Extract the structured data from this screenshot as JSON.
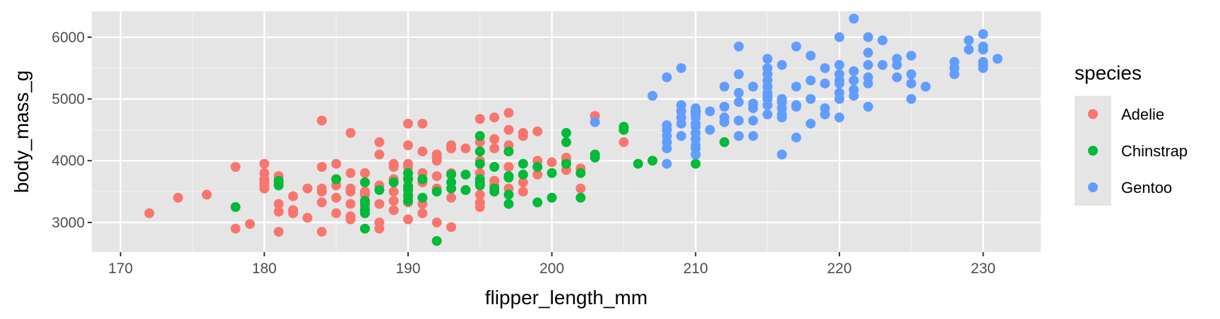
{
  "chart_data": {
    "type": "scatter",
    "xlabel": "flipper_length_mm",
    "ylabel": "body_mass_g",
    "xlim": [
      168,
      234
    ],
    "ylim": [
      2520,
      6420
    ],
    "x_ticks": [
      170,
      180,
      190,
      200,
      210,
      220,
      230
    ],
    "x_minor_ticks": [
      175,
      185,
      195,
      205,
      215,
      225
    ],
    "y_ticks": [
      3000,
      4000,
      5000,
      6000
    ],
    "y_minor_ticks": [
      3500,
      4500,
      5500
    ],
    "grid": true,
    "panel_background": "#e5e5e5",
    "legend": {
      "title": "species",
      "placement": "right"
    },
    "series": [
      {
        "name": "Adelie",
        "color": "#f8766d",
        "points": [
          [
            172,
            3150
          ],
          [
            174,
            3400
          ],
          [
            176,
            3450
          ],
          [
            178,
            2900
          ],
          [
            178,
            3900
          ],
          [
            179,
            2975
          ],
          [
            180,
            3550
          ],
          [
            180,
            3600
          ],
          [
            180,
            3650
          ],
          [
            180,
            3700
          ],
          [
            180,
            3800
          ],
          [
            180,
            3950
          ],
          [
            181,
            2850
          ],
          [
            181,
            3175
          ],
          [
            181,
            3300
          ],
          [
            181,
            3625
          ],
          [
            181,
            3750
          ],
          [
            182,
            3150
          ],
          [
            182,
            3200
          ],
          [
            182,
            3425
          ],
          [
            183,
            3075
          ],
          [
            183,
            3550
          ],
          [
            184,
            2850
          ],
          [
            184,
            3325
          ],
          [
            184,
            3500
          ],
          [
            184,
            3550
          ],
          [
            184,
            3900
          ],
          [
            184,
            4650
          ],
          [
            185,
            3150
          ],
          [
            185,
            3400
          ],
          [
            185,
            3600
          ],
          [
            185,
            3700
          ],
          [
            185,
            3950
          ],
          [
            186,
            3050
          ],
          [
            186,
            3100
          ],
          [
            186,
            3300
          ],
          [
            186,
            3500
          ],
          [
            186,
            3550
          ],
          [
            186,
            3800
          ],
          [
            186,
            4450
          ],
          [
            187,
            3150
          ],
          [
            187,
            3250
          ],
          [
            187,
            3450
          ],
          [
            187,
            3500
          ],
          [
            187,
            3650
          ],
          [
            187,
            3800
          ],
          [
            188,
            2900
          ],
          [
            188,
            3000
          ],
          [
            188,
            3300
          ],
          [
            188,
            3600
          ],
          [
            188,
            4100
          ],
          [
            188,
            4300
          ],
          [
            189,
            3200
          ],
          [
            189,
            3350
          ],
          [
            189,
            3500
          ],
          [
            189,
            3700
          ],
          [
            189,
            3900
          ],
          [
            189,
            3950
          ],
          [
            190,
            3050
          ],
          [
            190,
            3325
          ],
          [
            190,
            3450
          ],
          [
            190,
            3600
          ],
          [
            190,
            3725
          ],
          [
            190,
            3800
          ],
          [
            190,
            3900
          ],
          [
            190,
            3950
          ],
          [
            190,
            4250
          ],
          [
            190,
            4600
          ],
          [
            191,
            3150
          ],
          [
            191,
            3300
          ],
          [
            191,
            3650
          ],
          [
            191,
            3700
          ],
          [
            191,
            3800
          ],
          [
            191,
            4150
          ],
          [
            191,
            4600
          ],
          [
            192,
            3000
          ],
          [
            192,
            3550
          ],
          [
            192,
            3750
          ],
          [
            192,
            4000
          ],
          [
            192,
            4050
          ],
          [
            192,
            4100
          ],
          [
            193,
            2925
          ],
          [
            193,
            3400
          ],
          [
            193,
            3650
          ],
          [
            193,
            3800
          ],
          [
            193,
            4200
          ],
          [
            193,
            4250
          ],
          [
            194,
            3525
          ],
          [
            194,
            4200
          ],
          [
            195,
            3250
          ],
          [
            195,
            3325
          ],
          [
            195,
            3450
          ],
          [
            195,
            3800
          ],
          [
            195,
            4000
          ],
          [
            195,
            4300
          ],
          [
            195,
            4675
          ],
          [
            196,
            3600
          ],
          [
            196,
            3675
          ],
          [
            196,
            4200
          ],
          [
            196,
            4350
          ],
          [
            196,
            4700
          ],
          [
            197,
            3550
          ],
          [
            197,
            3900
          ],
          [
            197,
            4250
          ],
          [
            197,
            4500
          ],
          [
            197,
            4775
          ],
          [
            198,
            3500
          ],
          [
            198,
            3650
          ],
          [
            198,
            4400
          ],
          [
            198,
            4450
          ],
          [
            199,
            3775
          ],
          [
            199,
            4000
          ],
          [
            199,
            4475
          ],
          [
            200,
            3975
          ],
          [
            201,
            3850
          ],
          [
            201,
            4050
          ],
          [
            201,
            4000
          ],
          [
            202,
            3550
          ],
          [
            202,
            3875
          ],
          [
            203,
            4725
          ],
          [
            205,
            4300
          ]
        ]
      },
      {
        "name": "Chinstrap",
        "color": "#00ba38",
        "points": [
          [
            178,
            3250
          ],
          [
            181,
            3600
          ],
          [
            181,
            3675
          ],
          [
            185,
            3700
          ],
          [
            187,
            2900
          ],
          [
            187,
            3150
          ],
          [
            187,
            3200
          ],
          [
            187,
            3300
          ],
          [
            187,
            3350
          ],
          [
            187,
            3650
          ],
          [
            188,
            3525
          ],
          [
            189,
            3650
          ],
          [
            190,
            3350
          ],
          [
            190,
            3425
          ],
          [
            190,
            3525
          ],
          [
            190,
            3575
          ],
          [
            190,
            3700
          ],
          [
            190,
            3800
          ],
          [
            191,
            3400
          ],
          [
            191,
            3700
          ],
          [
            192,
            2700
          ],
          [
            192,
            3500
          ],
          [
            193,
            3550
          ],
          [
            193,
            3650
          ],
          [
            193,
            3775
          ],
          [
            194,
            3525
          ],
          [
            194,
            3775
          ],
          [
            195,
            3600
          ],
          [
            195,
            3650
          ],
          [
            195,
            3700
          ],
          [
            195,
            3950
          ],
          [
            195,
            4150
          ],
          [
            195,
            4400
          ],
          [
            196,
            3500
          ],
          [
            196,
            3550
          ],
          [
            196,
            3900
          ],
          [
            197,
            3300
          ],
          [
            197,
            3450
          ],
          [
            197,
            3725
          ],
          [
            197,
            3750
          ],
          [
            197,
            4150
          ],
          [
            198,
            3775
          ],
          [
            198,
            3950
          ],
          [
            199,
            3325
          ],
          [
            199,
            3900
          ],
          [
            200,
            3400
          ],
          [
            200,
            3800
          ],
          [
            201,
            3950
          ],
          [
            201,
            4300
          ],
          [
            201,
            4450
          ],
          [
            202,
            3400
          ],
          [
            202,
            3800
          ],
          [
            203,
            4050
          ],
          [
            203,
            4100
          ],
          [
            205,
            4500
          ],
          [
            205,
            4550
          ],
          [
            206,
            3950
          ],
          [
            207,
            4000
          ],
          [
            210,
            3950
          ],
          [
            210,
            4100
          ],
          [
            210,
            4800
          ],
          [
            212,
            4300
          ]
        ]
      },
      {
        "name": "Gentoo",
        "color": "#619cff",
        "points": [
          [
            203,
            4625
          ],
          [
            207,
            5050
          ],
          [
            208,
            3950
          ],
          [
            208,
            4200
          ],
          [
            208,
            4300
          ],
          [
            208,
            4400
          ],
          [
            208,
            4500
          ],
          [
            208,
            4575
          ],
          [
            208,
            5350
          ],
          [
            209,
            4400
          ],
          [
            209,
            4600
          ],
          [
            209,
            4700
          ],
          [
            209,
            4800
          ],
          [
            209,
            4900
          ],
          [
            209,
            5500
          ],
          [
            210,
            4100
          ],
          [
            210,
            4200
          ],
          [
            210,
            4250
          ],
          [
            210,
            4350
          ],
          [
            210,
            4450
          ],
          [
            210,
            4550
          ],
          [
            210,
            4600
          ],
          [
            210,
            4700
          ],
          [
            210,
            4750
          ],
          [
            210,
            4850
          ],
          [
            211,
            4500
          ],
          [
            211,
            4800
          ],
          [
            212,
            4625
          ],
          [
            212,
            4700
          ],
          [
            212,
            4875
          ],
          [
            212,
            5200
          ],
          [
            213,
            4400
          ],
          [
            213,
            4650
          ],
          [
            213,
            4950
          ],
          [
            213,
            5100
          ],
          [
            213,
            5400
          ],
          [
            213,
            5850
          ],
          [
            214,
            4400
          ],
          [
            214,
            4650
          ],
          [
            214,
            4850
          ],
          [
            214,
            4925
          ],
          [
            214,
            5200
          ],
          [
            215,
            4750
          ],
          [
            215,
            4900
          ],
          [
            215,
            5000
          ],
          [
            215,
            5050
          ],
          [
            215,
            5100
          ],
          [
            215,
            5200
          ],
          [
            215,
            5300
          ],
          [
            215,
            5400
          ],
          [
            215,
            5500
          ],
          [
            215,
            5650
          ],
          [
            216,
            4100
          ],
          [
            216,
            4700
          ],
          [
            216,
            4750
          ],
          [
            216,
            4850
          ],
          [
            216,
            4950
          ],
          [
            216,
            5000
          ],
          [
            216,
            5550
          ],
          [
            217,
            4375
          ],
          [
            217,
            4875
          ],
          [
            217,
            4900
          ],
          [
            217,
            5200
          ],
          [
            217,
            5850
          ],
          [
            218,
            4600
          ],
          [
            218,
            5000
          ],
          [
            218,
            5300
          ],
          [
            218,
            5700
          ],
          [
            219,
            4750
          ],
          [
            219,
            4850
          ],
          [
            219,
            5250
          ],
          [
            219,
            5500
          ],
          [
            220,
            4700
          ],
          [
            220,
            5000
          ],
          [
            220,
            5100
          ],
          [
            220,
            5250
          ],
          [
            220,
            5300
          ],
          [
            220,
            5400
          ],
          [
            220,
            5550
          ],
          [
            220,
            6000
          ],
          [
            221,
            5050
          ],
          [
            221,
            5150
          ],
          [
            221,
            5300
          ],
          [
            221,
            5450
          ],
          [
            221,
            6300
          ],
          [
            222,
            4875
          ],
          [
            222,
            5250
          ],
          [
            222,
            5350
          ],
          [
            222,
            5550
          ],
          [
            222,
            5750
          ],
          [
            222,
            6000
          ],
          [
            223,
            5550
          ],
          [
            223,
            5950
          ],
          [
            224,
            5350
          ],
          [
            224,
            5550
          ],
          [
            224,
            5650
          ],
          [
            225,
            5000
          ],
          [
            225,
            5250
          ],
          [
            225,
            5400
          ],
          [
            225,
            5700
          ],
          [
            226,
            5200
          ],
          [
            228,
            5400
          ],
          [
            228,
            5500
          ],
          [
            228,
            5600
          ],
          [
            229,
            5800
          ],
          [
            229,
            5950
          ],
          [
            230,
            5500
          ],
          [
            230,
            5550
          ],
          [
            230,
            5600
          ],
          [
            230,
            5800
          ],
          [
            230,
            5850
          ],
          [
            230,
            6050
          ],
          [
            231,
            5650
          ]
        ]
      }
    ]
  }
}
